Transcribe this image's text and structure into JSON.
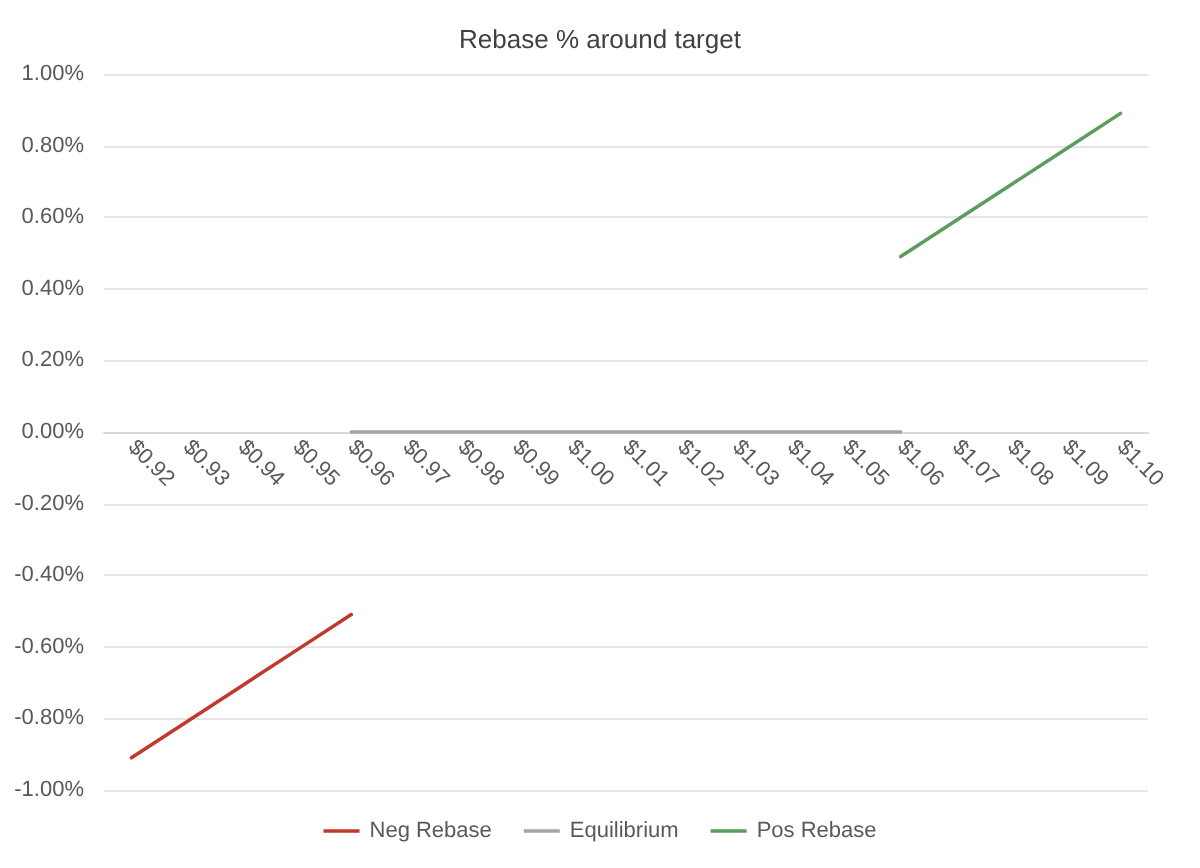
{
  "chart_data": {
    "type": "line",
    "title": "Rebase % around target",
    "categories": [
      "$0.92",
      "$0.93",
      "$0.94",
      "$0.95",
      "$0.96",
      "$0.97",
      "$0.98",
      "$0.99",
      "$1.00",
      "$1.01",
      "$1.02",
      "$1.03",
      "$1.04",
      "$1.05",
      "$1.06",
      "$1.07",
      "$1.08",
      "$1.09",
      "$1.10"
    ],
    "series": [
      {
        "name": "Neg Rebase",
        "color": "#c0392b",
        "values": [
          -0.91,
          -0.81,
          -0.71,
          -0.61,
          -0.51,
          null,
          null,
          null,
          null,
          null,
          null,
          null,
          null,
          null,
          null,
          null,
          null,
          null,
          null
        ]
      },
      {
        "name": "Equilibrium",
        "color": "#a5a5a5",
        "values": [
          null,
          null,
          null,
          null,
          0,
          0,
          0,
          0,
          0,
          0,
          0,
          0,
          0,
          0,
          0,
          null,
          null,
          null,
          null
        ]
      },
      {
        "name": "Pos Rebase",
        "color": "#5b9e5b",
        "values": [
          null,
          null,
          null,
          null,
          null,
          null,
          null,
          null,
          null,
          null,
          null,
          null,
          null,
          null,
          0.49,
          0.59,
          0.69,
          0.79,
          0.89
        ]
      }
    ],
    "ylim": [
      -1,
      1
    ],
    "yticks": [
      {
        "value": -1,
        "label": "-1.00%"
      },
      {
        "value": -0.8,
        "label": "-0.80%"
      },
      {
        "value": -0.6,
        "label": "-0.60%"
      },
      {
        "value": -0.4,
        "label": "-0.40%"
      },
      {
        "value": -0.2,
        "label": "-0.20%"
      },
      {
        "value": 0,
        "label": "0.00%"
      },
      {
        "value": 0.2,
        "label": "0.20%"
      },
      {
        "value": 0.4,
        "label": "0.40%"
      },
      {
        "value": 0.6,
        "label": "0.60%"
      },
      {
        "value": 0.8,
        "label": "0.80%"
      },
      {
        "value": 1,
        "label": "1.00%"
      }
    ],
    "grid": "y",
    "legend": "bottom",
    "marker": "none",
    "line_style": "solid"
  }
}
